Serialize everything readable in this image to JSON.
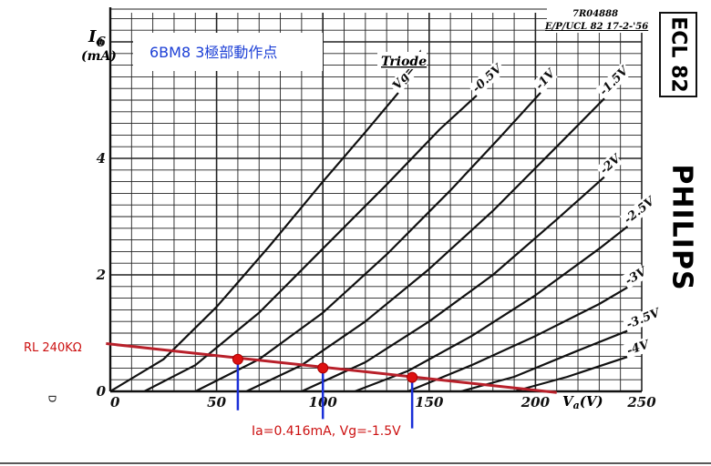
{
  "chart_data": {
    "type": "line",
    "title": "Triode",
    "reference": "7R04888",
    "reference_sub": "E/P/UCL 82 17-2-'56",
    "tube_type": "ECL 82",
    "brand": "PHILIPS",
    "annotation_title": "6BM8 3極部動作点",
    "load_line_label": "RL 240KΩ",
    "operating_point_label": "Ia=0.416mA, Vg=-1.5V",
    "y_label_main": "I",
    "y_label_sub": "a",
    "y_unit": "(mA)",
    "x_label_main": "V",
    "x_label_sub": "a",
    "x_unit": "(V)",
    "stray_mark": "D",
    "xlim": [
      0,
      250
    ],
    "ylim": [
      0,
      6.5
    ],
    "x_ticks": [
      {
        "value": 0,
        "label": "0"
      },
      {
        "value": 50,
        "label": "50"
      },
      {
        "value": 100,
        "label": "100"
      },
      {
        "value": 150,
        "label": "150"
      },
      {
        "value": 200,
        "label": "200"
      },
      {
        "value": 250,
        "label": "250"
      }
    ],
    "y_ticks": [
      {
        "value": 0,
        "label": "0"
      },
      {
        "value": 2,
        "label": "2"
      },
      {
        "value": 4,
        "label": "4"
      },
      {
        "value": 6,
        "label": "6"
      }
    ],
    "grid": true,
    "series": [
      {
        "name": "Vg=0V",
        "x": [
          0,
          25,
          50,
          75,
          100,
          120,
          136
        ],
        "y": [
          0,
          0.55,
          1.45,
          2.5,
          3.6,
          4.45,
          5.15
        ]
      },
      {
        "name": "-0.5V",
        "x": [
          16,
          40,
          70,
          100,
          130,
          155,
          173
        ],
        "y": [
          0,
          0.45,
          1.35,
          2.45,
          3.55,
          4.5,
          5.1
        ]
      },
      {
        "name": "-1V",
        "x": [
          40,
          70,
          100,
          130,
          160,
          183,
          203
        ],
        "y": [
          0,
          0.55,
          1.35,
          2.35,
          3.45,
          4.35,
          5.15
        ]
      },
      {
        "name": "-1.5V",
        "x": [
          64,
          90,
          120,
          150,
          180,
          210,
          233
        ],
        "y": [
          0,
          0.45,
          1.2,
          2.1,
          3.1,
          4.2,
          5.05
        ]
      },
      {
        "name": "-2V",
        "x": [
          90,
          120,
          150,
          180,
          210,
          233
        ],
        "y": [
          0,
          0.5,
          1.2,
          2.0,
          2.95,
          3.7
        ]
      },
      {
        "name": "-2.5V",
        "x": [
          115,
          140,
          170,
          200,
          230,
          244
        ],
        "y": [
          0,
          0.35,
          0.95,
          1.65,
          2.45,
          2.85
        ]
      },
      {
        "name": "-3V",
        "x": [
          140,
          170,
          200,
          230,
          244
        ],
        "y": [
          0,
          0.45,
          0.95,
          1.5,
          1.8
        ]
      },
      {
        "name": "-3.5V",
        "x": [
          165,
          190,
          220,
          244
        ],
        "y": [
          0,
          0.25,
          0.7,
          1.05
        ]
      },
      {
        "name": "-4V",
        "x": [
          190,
          215,
          244
        ],
        "y": [
          0,
          0.25,
          0.6
        ]
      }
    ],
    "load_line": {
      "x": [
        -2,
        210
      ],
      "y": [
        0.82,
        -0.02
      ]
    },
    "operating_points": [
      {
        "x": 60,
        "y": 0.55
      },
      {
        "x": 100,
        "y": 0.4
      },
      {
        "x": 142,
        "y": 0.24
      }
    ],
    "colors": {
      "load_line": "#b8202a",
      "point": "#dd1111",
      "marker": "#1a2fd8",
      "annotation_text": "#1c3fd6",
      "label_text": "#cc1111"
    }
  }
}
